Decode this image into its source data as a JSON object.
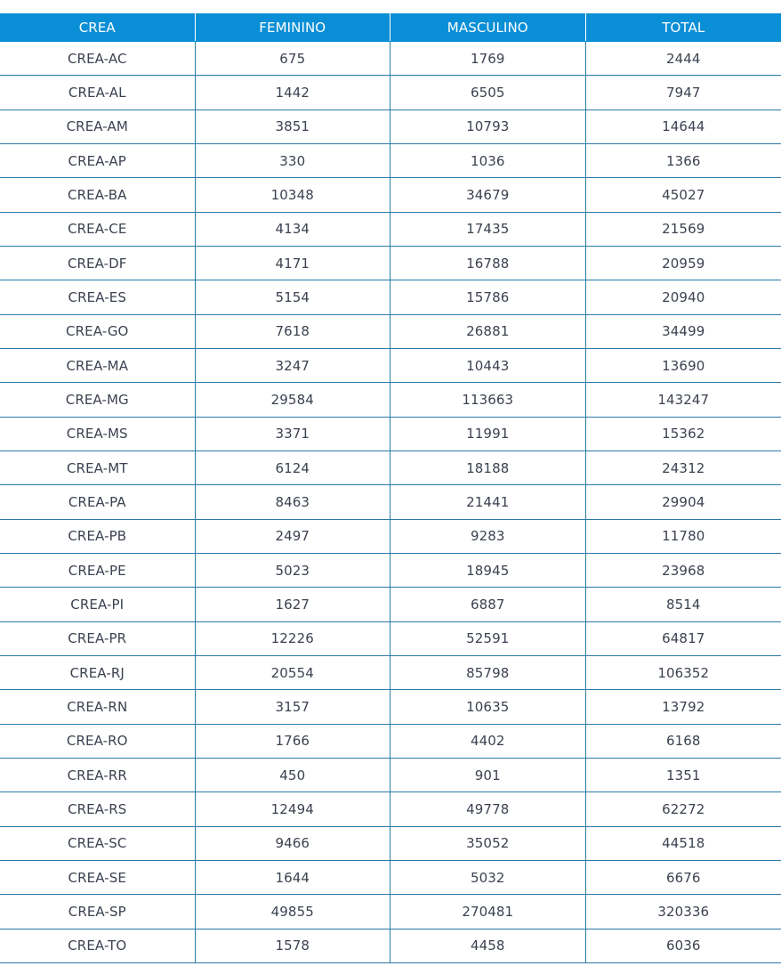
{
  "table": {
    "headers": [
      "CREA",
      "FEMININO",
      "MASCULINO",
      "TOTAL"
    ],
    "rows": [
      [
        "CREA-AC",
        "675",
        "1769",
        "2444"
      ],
      [
        "CREA-AL",
        "1442",
        "6505",
        "7947"
      ],
      [
        "CREA-AM",
        "3851",
        "10793",
        "14644"
      ],
      [
        "CREA-AP",
        "330",
        "1036",
        "1366"
      ],
      [
        "CREA-BA",
        "10348",
        "34679",
        "45027"
      ],
      [
        "CREA-CE",
        "4134",
        "17435",
        "21569"
      ],
      [
        "CREA-DF",
        "4171",
        "16788",
        "20959"
      ],
      [
        "CREA-ES",
        "5154",
        "15786",
        "20940"
      ],
      [
        "CREA-GO",
        "7618",
        "26881",
        "34499"
      ],
      [
        "CREA-MA",
        "3247",
        "10443",
        "13690"
      ],
      [
        "CREA-MG",
        "29584",
        "113663",
        "143247"
      ],
      [
        "CREA-MS",
        "3371",
        "11991",
        "15362"
      ],
      [
        "CREA-MT",
        "6124",
        "18188",
        "24312"
      ],
      [
        "CREA-PA",
        "8463",
        "21441",
        "29904"
      ],
      [
        "CREA-PB",
        "2497",
        "9283",
        "11780"
      ],
      [
        "CREA-PE",
        "5023",
        "18945",
        "23968"
      ],
      [
        "CREA-PI",
        "1627",
        "6887",
        "8514"
      ],
      [
        "CREA-PR",
        "12226",
        "52591",
        "64817"
      ],
      [
        "CREA-RJ",
        "20554",
        "85798",
        "106352"
      ],
      [
        "CREA-RN",
        "3157",
        "10635",
        "13792"
      ],
      [
        "CREA-RO",
        "1766",
        "4402",
        "6168"
      ],
      [
        "CREA-RR",
        "450",
        "901",
        "1351"
      ],
      [
        "CREA-RS",
        "12494",
        "49778",
        "62272"
      ],
      [
        "CREA-SC",
        "9466",
        "35052",
        "44518"
      ],
      [
        "CREA-SE",
        "1644",
        "5032",
        "6676"
      ],
      [
        "CREA-SP",
        "49855",
        "270481",
        "320336"
      ],
      [
        "CREA-TO",
        "1578",
        "4458",
        "6036"
      ]
    ]
  },
  "colors": {
    "header_bg": "#0a8fd6",
    "grid_line": "#2a7aa8",
    "text": "#3b4250"
  }
}
